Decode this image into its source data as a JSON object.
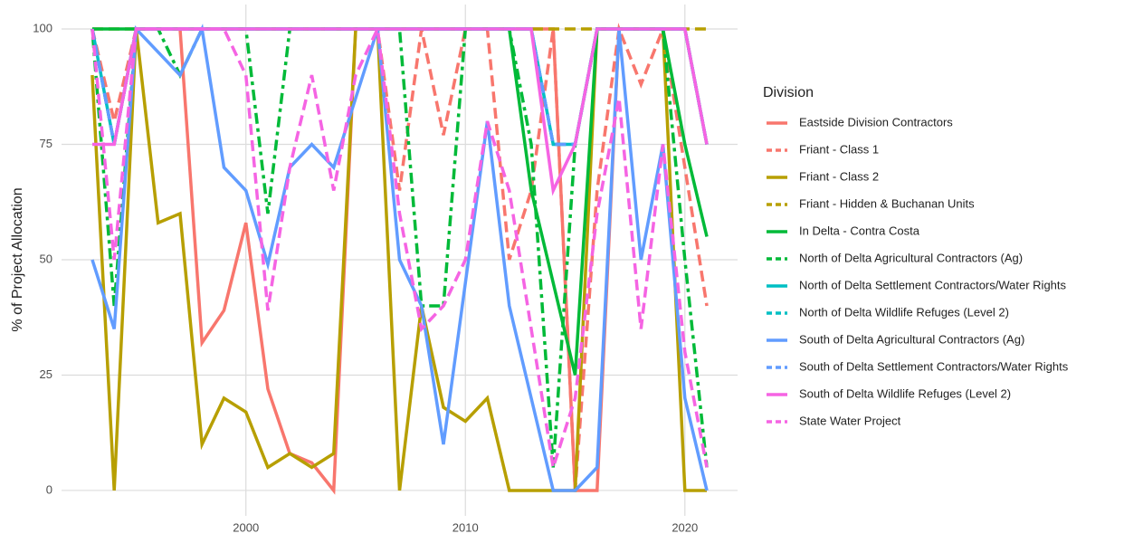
{
  "chart_data": {
    "type": "line",
    "y_label": "% of Project Allocation",
    "legend_title": "Division",
    "legend_position": "right",
    "grid": true,
    "x": [
      1993,
      1994,
      1995,
      1996,
      1997,
      1998,
      1999,
      2000,
      2001,
      2002,
      2003,
      2004,
      2005,
      2006,
      2007,
      2008,
      2009,
      2010,
      2011,
      2012,
      2013,
      2014,
      2015,
      2016,
      2017,
      2018,
      2019,
      2020,
      2021
    ],
    "xlim": [
      1991.6,
      2022.4
    ],
    "xticks": [
      2000,
      2010,
      2020
    ],
    "ylim": [
      -5.5,
      105.3
    ],
    "yticks": [
      0,
      25,
      50,
      75,
      100
    ],
    "series": [
      {
        "name": "Eastside Division Contractors",
        "color": "#F8766D",
        "dash": "solid",
        "values": [
          null,
          null,
          100,
          100,
          100,
          32,
          39,
          58,
          22,
          8,
          6,
          0,
          100,
          100,
          100,
          100,
          100,
          100,
          100,
          100,
          100,
          100,
          0,
          0,
          100,
          100,
          100,
          100,
          75
        ]
      },
      {
        "name": "Friant - Class 1",
        "color": "#F8766D",
        "dash": "dashed",
        "values": [
          100,
          80,
          100,
          100,
          100,
          100,
          100,
          100,
          100,
          100,
          100,
          100,
          100,
          100,
          65,
          100,
          77,
          100,
          100,
          50,
          65,
          100,
          0,
          65,
          100,
          88,
          100,
          70,
          40
        ]
      },
      {
        "name": "Friant - Class 2",
        "color": "#B79F00",
        "dash": "solid",
        "values": [
          90,
          0,
          100,
          58,
          60,
          10,
          20,
          17,
          5,
          8,
          5,
          8,
          100,
          100,
          0,
          40,
          18,
          15,
          20,
          0,
          0,
          0,
          0,
          100,
          100,
          100,
          100,
          0,
          0
        ]
      },
      {
        "name": "Friant - Hidden & Buchanan Units",
        "color": "#B79F00",
        "dash": "dashed",
        "values": [
          100,
          100,
          100,
          100,
          100,
          100,
          100,
          100,
          100,
          100,
          100,
          100,
          100,
          100,
          100,
          100,
          100,
          100,
          100,
          100,
          100,
          100,
          100,
          100,
          100,
          100,
          100,
          100,
          100
        ]
      },
      {
        "name": "In Delta - Contra Costa",
        "color": "#00BA38",
        "dash": "solid",
        "values": [
          100,
          100,
          100,
          100,
          100,
          100,
          100,
          100,
          100,
          100,
          100,
          100,
          100,
          100,
          100,
          100,
          100,
          100,
          100,
          100,
          65,
          45,
          25,
          100,
          100,
          100,
          100,
          75,
          55
        ]
      },
      {
        "name": "North of Delta Agricultural Contractors (Ag)",
        "color": "#00BA38",
        "dash": "dotdash",
        "values": [
          100,
          40,
          100,
          100,
          90,
          100,
          100,
          100,
          60,
          100,
          100,
          100,
          100,
          100,
          100,
          40,
          40,
          100,
          100,
          100,
          75,
          5,
          75,
          100,
          100,
          100,
          100,
          50,
          5
        ]
      },
      {
        "name": "North of Delta Settlement Contractors/Water Rights",
        "color": "#00BFC4",
        "dash": "solid",
        "values": [
          100,
          75,
          100,
          100,
          100,
          100,
          100,
          100,
          100,
          100,
          100,
          100,
          100,
          100,
          100,
          100,
          100,
          100,
          100,
          100,
          100,
          75,
          75,
          100,
          100,
          100,
          100,
          100,
          75
        ]
      },
      {
        "name": "North of Delta Wildlife Refuges (Level 2)",
        "color": "#00BFC4",
        "dash": "dashed",
        "values": [
          100,
          75,
          100,
          100,
          100,
          100,
          100,
          100,
          100,
          100,
          100,
          100,
          100,
          100,
          100,
          100,
          100,
          100,
          100,
          100,
          100,
          75,
          75,
          100,
          100,
          100,
          100,
          100,
          75
        ]
      },
      {
        "name": "South of Delta Agricultural Contractors (Ag)",
        "color": "#619CFF",
        "dash": "solid",
        "values": [
          50,
          35,
          100,
          95,
          90,
          100,
          70,
          65,
          49,
          70,
          75,
          70,
          85,
          100,
          50,
          40,
          10,
          45,
          80,
          40,
          20,
          0,
          0,
          5,
          100,
          50,
          75,
          20,
          0
        ]
      },
      {
        "name": "South of Delta Settlement Contractors/Water Rights",
        "color": "#619CFF",
        "dash": "dashed",
        "values": [
          100,
          75,
          100,
          100,
          100,
          100,
          100,
          100,
          100,
          100,
          100,
          100,
          100,
          100,
          100,
          100,
          100,
          100,
          100,
          100,
          100,
          75,
          75,
          100,
          100,
          100,
          100,
          100,
          75
        ]
      },
      {
        "name": "South of Delta Wildlife Refuges (Level 2)",
        "color": "#F564E3",
        "dash": "solid",
        "values": [
          75,
          75,
          100,
          100,
          100,
          100,
          100,
          100,
          100,
          100,
          100,
          100,
          100,
          100,
          100,
          100,
          100,
          100,
          100,
          100,
          100,
          65,
          75,
          100,
          100,
          100,
          100,
          100,
          75
        ]
      },
      {
        "name": "State Water Project",
        "color": "#F564E3",
        "dash": "dashed",
        "values": [
          100,
          50,
          100,
          100,
          100,
          100,
          100,
          90,
          39,
          70,
          90,
          65,
          90,
          100,
          60,
          35,
          40,
          50,
          80,
          65,
          35,
          5,
          20,
          60,
          85,
          35,
          75,
          30,
          5
        ]
      }
    ]
  }
}
